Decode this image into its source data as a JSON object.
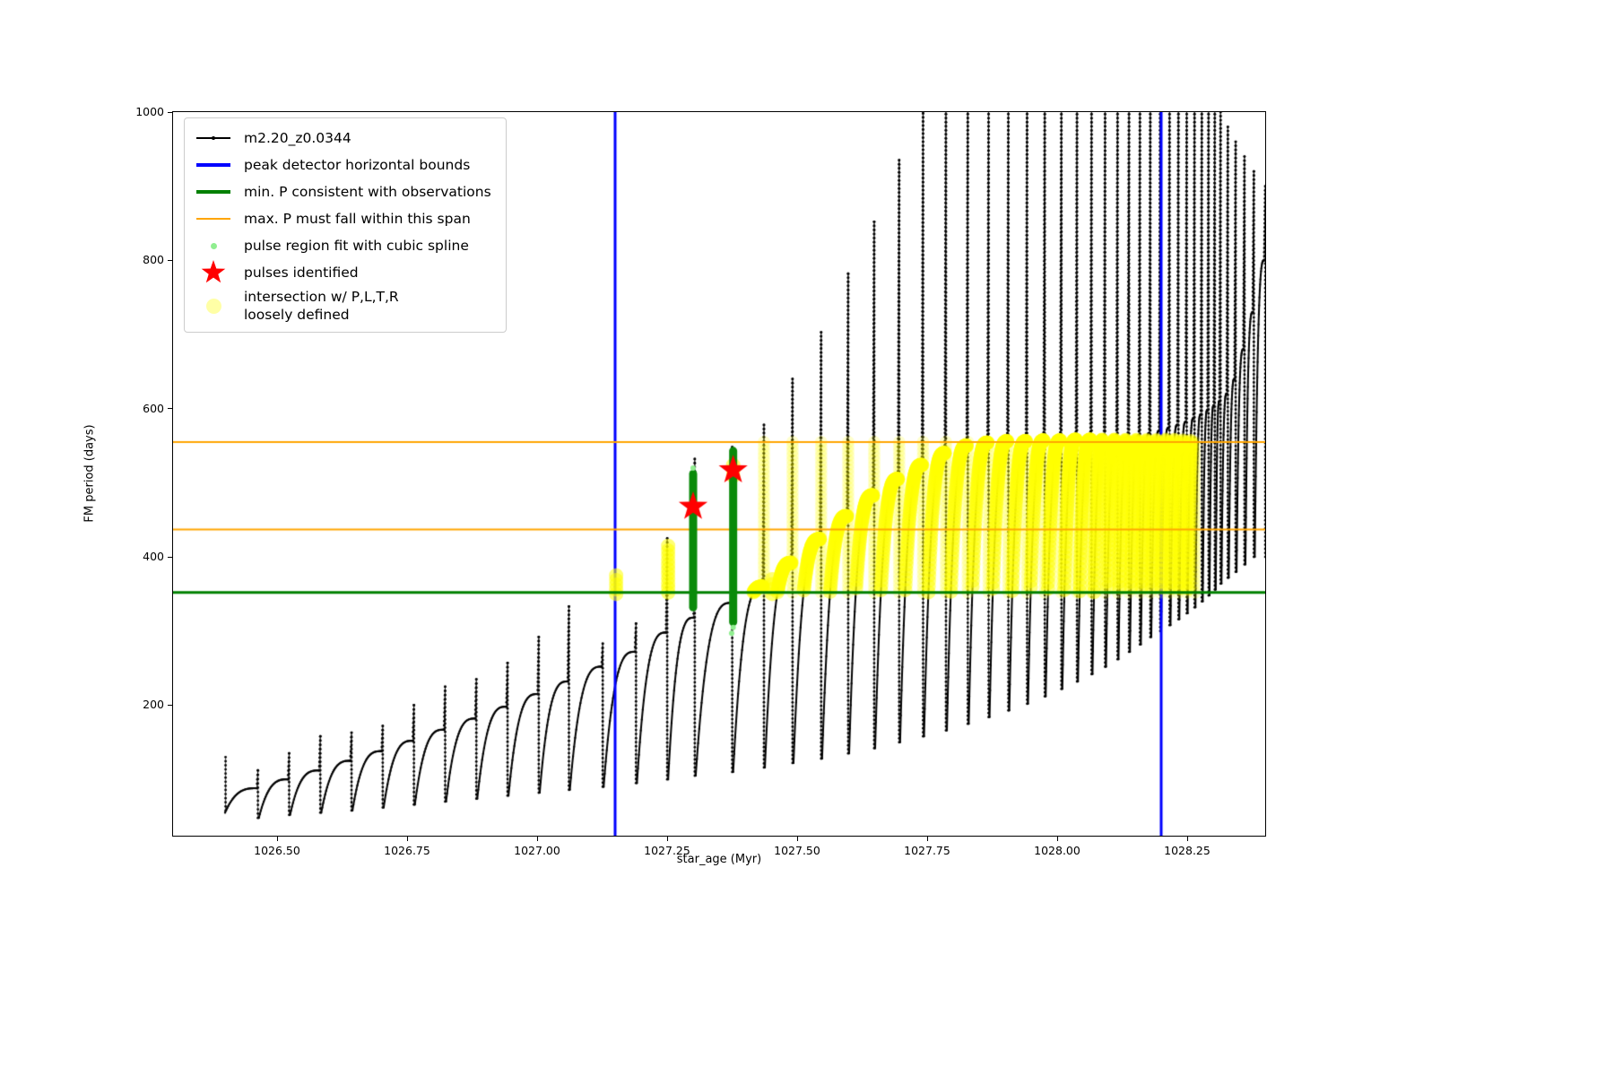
{
  "legend": {
    "items": [
      {
        "label": "m2.20_z0.0344"
      },
      {
        "label": "peak detector horizontal bounds"
      },
      {
        "label": "min. P consistent with observations"
      },
      {
        "label": "max. P must fall within this span"
      },
      {
        "label": "pulse region fit with cubic spline"
      },
      {
        "label": "pulses identified"
      },
      {
        "label": "intersection w/ P,L,T,R\nloosely defined"
      }
    ]
  },
  "chart_data": {
    "type": "line",
    "series_label": "m2.20_z0.0344",
    "title": "",
    "xlabel": "star_age (Myr)",
    "ylabel": "FM period (days)",
    "xlim": [
      1026.3,
      1028.4
    ],
    "ylim": [
      24,
      1000
    ],
    "grid": false,
    "legend_position": "upper left",
    "xticks": [
      1026.5,
      1026.75,
      1027.0,
      1027.25,
      1027.5,
      1027.75,
      1028.0,
      1028.25
    ],
    "xtick_labels": [
      "1026.50",
      "1026.75",
      "1027.00",
      "1027.25",
      "1027.50",
      "1027.75",
      "1028.00",
      "1028.25"
    ],
    "yticks": [
      200,
      400,
      600,
      800,
      1000
    ],
    "ytick_labels": [
      "200",
      "400",
      "600",
      "800",
      "1000"
    ],
    "colors": {
      "series": "#000000",
      "peak_bounds": "#0000ff",
      "min_P": "#008000",
      "max_P_span": "#ffa500",
      "spline_fit": "#90ee90",
      "spline_column": "#0a8a0a",
      "pulses": "#ff0000",
      "intersection": "#ffff00"
    },
    "peak_detector_bounds_x": [
      1027.15,
      1028.2
    ],
    "min_P_line_y": 352,
    "max_P_span_y": [
      437,
      555
    ],
    "pulses_identified": [
      [
        1027.3,
        468
      ],
      [
        1027.377,
        517
      ]
    ],
    "spline_columns": [
      {
        "x": 1027.3,
        "p0": 332,
        "p1": 512
      },
      {
        "x": 1027.377,
        "p0": 312,
        "p1": 543
      }
    ],
    "spline_points": [
      [
        1027.377,
        305
      ],
      [
        1027.374,
        297
      ],
      [
        1027.3,
        520
      ]
    ],
    "yellow_band": [
      352,
      555
    ],
    "yellow_t_range": [
      1027.42,
      1028.27
    ],
    "yellow_columns": [
      [
        1027.152,
        350,
        375
      ],
      [
        1027.252,
        352,
        415
      ],
      [
        1027.452,
        350,
        370
      ],
      [
        1027.377,
        509,
        524
      ]
    ],
    "lead_in": {
      "x": 1026.401,
      "p0": 58,
      "p1": 130
    },
    "cycles": [
      [
        1026.4,
        1026.465,
        55,
        88,
        112
      ],
      [
        1026.465,
        1026.525,
        48,
        100,
        135
      ],
      [
        1026.525,
        1026.585,
        52,
        112,
        158
      ],
      [
        1026.585,
        1026.645,
        55,
        125,
        163
      ],
      [
        1026.645,
        1026.705,
        58,
        138,
        172
      ],
      [
        1026.705,
        1026.765,
        62,
        152,
        200
      ],
      [
        1026.765,
        1026.825,
        66,
        167,
        225
      ],
      [
        1026.825,
        1026.885,
        70,
        182,
        235
      ],
      [
        1026.885,
        1026.945,
        74,
        198,
        257
      ],
      [
        1026.945,
        1027.005,
        78,
        215,
        292
      ],
      [
        1027.005,
        1027.063,
        82,
        232,
        333
      ],
      [
        1027.063,
        1027.128,
        86,
        252,
        283
      ],
      [
        1027.128,
        1027.192,
        90,
        272,
        310
      ],
      [
        1027.192,
        1027.252,
        95,
        298,
        425
      ],
      [
        1027.252,
        1027.305,
        100,
        318,
        532
      ],
      [
        1027.305,
        1027.377,
        105,
        338,
        548
      ],
      [
        1027.377,
        1027.438,
        110,
        360,
        578
      ],
      [
        1027.438,
        1027.493,
        116,
        392,
        640
      ],
      [
        1027.493,
        1027.548,
        122,
        424,
        703
      ],
      [
        1027.548,
        1027.6,
        128,
        455,
        782
      ],
      [
        1027.6,
        1027.65,
        135,
        483,
        852
      ],
      [
        1027.65,
        1027.698,
        142,
        505,
        935
      ],
      [
        1027.698,
        1027.744,
        150,
        524,
        1020
      ],
      [
        1027.744,
        1027.788,
        158,
        540,
        1120
      ],
      [
        1027.788,
        1027.83,
        166,
        550,
        1200
      ],
      [
        1027.83,
        1027.87,
        175,
        554,
        1200
      ],
      [
        1027.87,
        1027.908,
        184,
        556,
        1200
      ],
      [
        1027.908,
        1027.944,
        193,
        556,
        1200
      ],
      [
        1027.944,
        1027.978,
        202,
        557,
        1200
      ],
      [
        1027.978,
        1028.01,
        212,
        557,
        1200
      ],
      [
        1028.01,
        1028.04,
        222,
        558,
        1200
      ],
      [
        1028.04,
        1028.068,
        232,
        558,
        1200
      ],
      [
        1028.068,
        1028.094,
        242,
        559,
        1200
      ],
      [
        1028.094,
        1028.118,
        252,
        560,
        1200
      ],
      [
        1028.118,
        1028.14,
        262,
        562,
        1200
      ],
      [
        1028.14,
        1028.161,
        272,
        564,
        1200
      ],
      [
        1028.161,
        1028.181,
        282,
        567,
        1200
      ],
      [
        1028.181,
        1028.2,
        292,
        570,
        1200
      ],
      [
        1028.2,
        1028.218,
        300,
        574,
        1200
      ],
      [
        1028.218,
        1028.235,
        308,
        578,
        1200
      ],
      [
        1028.235,
        1028.251,
        316,
        582,
        1200
      ],
      [
        1028.251,
        1028.266,
        324,
        587,
        1200
      ],
      [
        1028.266,
        1028.28,
        332,
        592,
        1150
      ],
      [
        1028.28,
        1028.293,
        340,
        598,
        1100
      ],
      [
        1028.293,
        1028.305,
        348,
        604,
        1050
      ],
      [
        1028.305,
        1028.316,
        356,
        610,
        1000
      ],
      [
        1028.316,
        1028.33,
        364,
        620,
        980
      ],
      [
        1028.33,
        1028.345,
        372,
        640,
        960
      ],
      [
        1028.345,
        1028.362,
        380,
        680,
        940
      ],
      [
        1028.362,
        1028.38,
        390,
        730,
        920
      ],
      [
        1028.38,
        1028.402,
        400,
        800,
        900
      ]
    ]
  }
}
